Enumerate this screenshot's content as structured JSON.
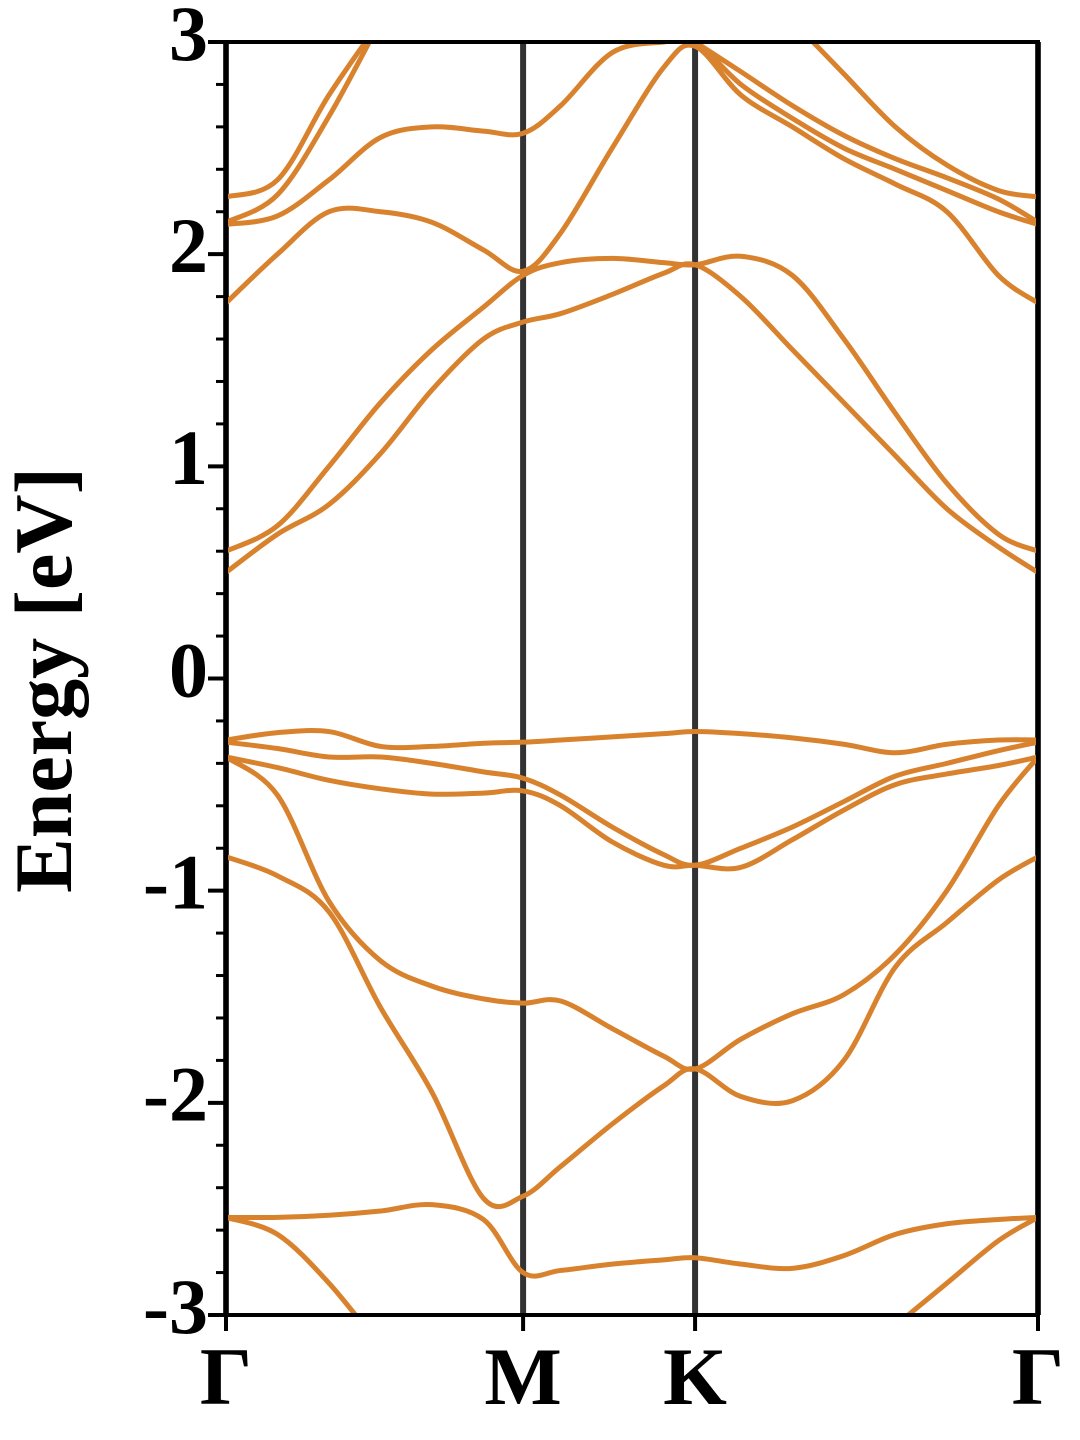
{
  "chart_data": {
    "type": "line",
    "ylabel": "Energy [eV]",
    "x": [
      0,
      0.1,
      0.2,
      0.3,
      0.4,
      0.5,
      0.577,
      0.65,
      0.75,
      0.85,
      0.911,
      1.0,
      1.1,
      1.2,
      1.3,
      1.4,
      1.5,
      1.577
    ],
    "xlim": [
      0,
      1.577
    ],
    "xticks": [
      {
        "value": 0,
        "label": "Γ"
      },
      {
        "value": 0.577,
        "label": "M"
      },
      {
        "value": 0.911,
        "label": "K"
      },
      {
        "value": 1.577,
        "label": "Γ"
      }
    ],
    "xgrid": true,
    "grid_color": "#333333",
    "ylim": [
      -3,
      3
    ],
    "yticks": [
      -3,
      -2,
      -1,
      0,
      1,
      2,
      3
    ],
    "yminor_step": 0.2,
    "series": [
      {
        "color": "#d9822e",
        "values": [
          -0.29,
          -0.255,
          -0.25,
          -0.32,
          -0.32,
          -0.305,
          -0.3,
          -0.29,
          -0.275,
          -0.26,
          -0.25,
          -0.26,
          -0.28,
          -0.31,
          -0.35,
          -0.31,
          -0.29,
          -0.29
        ]
      },
      {
        "color": "#d9822e",
        "values": [
          -0.3,
          -0.33,
          -0.37,
          -0.37,
          -0.4,
          -0.44,
          -0.47,
          -0.55,
          -0.7,
          -0.83,
          -0.88,
          -0.8,
          -0.7,
          -0.58,
          -0.46,
          -0.4,
          -0.34,
          -0.3
        ]
      },
      {
        "color": "#d9822e",
        "values": [
          -0.37,
          -0.42,
          -0.48,
          -0.52,
          -0.545,
          -0.54,
          -0.53,
          -0.6,
          -0.77,
          -0.88,
          -0.88,
          -0.89,
          -0.76,
          -0.62,
          -0.5,
          -0.45,
          -0.41,
          -0.37
        ]
      },
      {
        "color": "#d9822e",
        "values": [
          -0.37,
          -0.55,
          -1.05,
          -1.33,
          -1.45,
          -1.51,
          -1.53,
          -1.52,
          -1.65,
          -1.78,
          -1.84,
          -1.7,
          -1.58,
          -1.49,
          -1.3,
          -1.0,
          -0.6,
          -0.37
        ]
      },
      {
        "color": "#d9822e",
        "values": [
          -0.84,
          -0.93,
          -1.1,
          -1.55,
          -1.95,
          -2.45,
          -2.44,
          -2.3,
          -2.1,
          -1.92,
          -1.84,
          -1.97,
          -1.99,
          -1.8,
          -1.36,
          -1.15,
          -0.95,
          -0.84
        ]
      },
      {
        "color": "#d9822e",
        "values": [
          -2.54,
          -2.54,
          -2.53,
          -2.51,
          -2.48,
          -2.55,
          -2.8,
          -2.79,
          -2.76,
          -2.74,
          -2.73,
          -2.76,
          -2.78,
          -2.72,
          -2.62,
          -2.57,
          -2.55,
          -2.54
        ]
      },
      {
        "color": "#d9822e",
        "values": [
          -2.54,
          -2.62,
          -2.85,
          -3.15,
          null,
          null,
          null,
          null,
          null,
          null,
          null,
          null,
          null,
          null,
          -3.05,
          -2.85,
          -2.65,
          -2.54
        ]
      },
      {
        "color": "#d9822e",
        "values": [
          0.5,
          0.68,
          0.82,
          1.06,
          1.36,
          1.6,
          1.68,
          1.72,
          1.81,
          1.91,
          1.95,
          1.8,
          1.55,
          1.3,
          1.05,
          0.8,
          0.62,
          0.5
        ]
      },
      {
        "color": "#d9822e",
        "values": [
          0.6,
          0.72,
          1.0,
          1.3,
          1.55,
          1.75,
          1.9,
          1.96,
          1.98,
          1.96,
          1.95,
          1.99,
          1.9,
          1.6,
          1.25,
          0.92,
          0.68,
          0.6
        ]
      },
      {
        "color": "#d9822e",
        "values": [
          1.77,
          2.0,
          2.2,
          2.2,
          2.15,
          2.02,
          1.92,
          2.1,
          2.5,
          2.88,
          2.98,
          2.75,
          2.6,
          2.45,
          2.33,
          2.2,
          1.9,
          1.77
        ]
      },
      {
        "color": "#d9822e",
        "values": [
          2.14,
          2.18,
          2.35,
          2.55,
          2.6,
          2.58,
          2.57,
          2.7,
          2.95,
          3.0,
          3.0,
          2.8,
          2.64,
          2.5,
          2.4,
          2.3,
          2.2,
          2.14
        ]
      },
      {
        "color": "#d9822e",
        "values": [
          2.15,
          2.28,
          2.65,
          3.1,
          null,
          null,
          null,
          null,
          null,
          null,
          3.0,
          2.86,
          2.7,
          2.56,
          2.45,
          2.36,
          2.26,
          2.15
        ]
      },
      {
        "color": "#d9822e",
        "values": [
          2.27,
          2.35,
          2.75,
          3.1,
          null,
          null,
          null,
          null,
          null,
          null,
          null,
          null,
          3.1,
          2.85,
          2.6,
          2.42,
          2.3,
          2.27
        ]
      }
    ]
  }
}
